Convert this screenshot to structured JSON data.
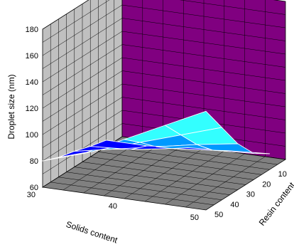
{
  "chart_data": {
    "type": "surface",
    "title": "",
    "zlabel": "Droplet size (nm)",
    "xlabel": "Solids content",
    "ylabel": "Resin content",
    "zlim": [
      60,
      180
    ],
    "z_ticks": [
      60,
      80,
      100,
      120,
      140,
      160,
      180
    ],
    "x_ticks": [
      30,
      40,
      50
    ],
    "y_ticks": [
      10,
      20,
      30,
      40,
      50
    ],
    "x": [
      30,
      35,
      40,
      45,
      50
    ],
    "y": [
      10,
      20,
      30,
      40,
      50
    ],
    "z": [
      [
        65,
        65,
        68,
        70,
        72
      ],
      [
        68,
        70,
        75,
        78,
        80
      ],
      [
        72,
        78,
        84,
        90,
        95
      ],
      [
        75,
        85,
        95,
        105,
        115
      ],
      [
        80,
        90,
        105,
        120,
        135
      ]
    ],
    "color_bands": [
      {
        "from": 60,
        "to": 80,
        "color": "#0000ff"
      },
      {
        "from": 80,
        "to": 100,
        "color": "#0099ff"
      },
      {
        "from": 100,
        "to": 120,
        "color": "#33ffff"
      },
      {
        "from": 120,
        "to": 140,
        "color": "#33ff66"
      }
    ],
    "grid": true,
    "colors": {
      "back_wall": "#c0c0c0",
      "right_wall": "#800080",
      "floor": "#808080",
      "grid_line": "#000000",
      "mesh_line": "#ffffff"
    }
  }
}
